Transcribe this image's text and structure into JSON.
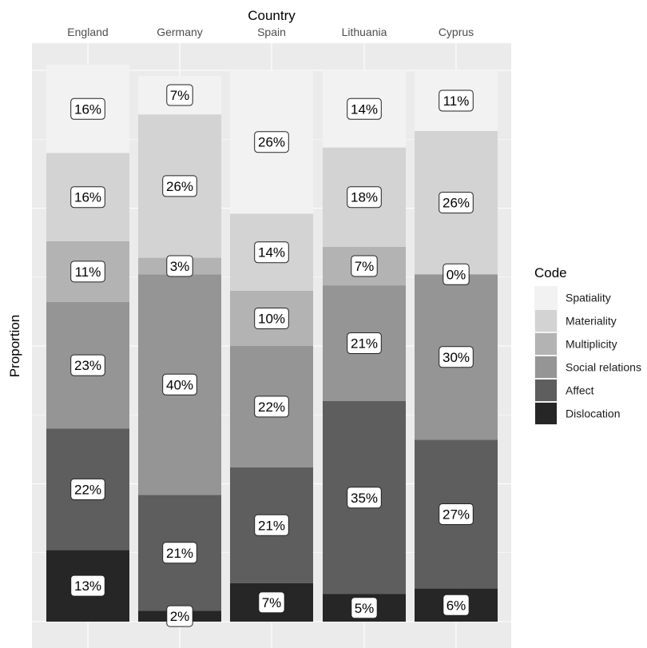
{
  "chart_data": {
    "type": "bar",
    "stacked": true,
    "orientation": "vertical",
    "facet_title": "Country",
    "ylabel": "Proportion",
    "xlabel": "",
    "ylim": [
      0,
      1
    ],
    "y_ticks_labeled": false,
    "grid": true,
    "categories": [
      "England",
      "Germany",
      "Spain",
      "Lithuania",
      "Cyprus"
    ],
    "stack_order_bottom_to_top": [
      "Dislocation",
      "Affect",
      "Social relations",
      "Multiplicity",
      "Materiality",
      "Spatiality"
    ],
    "legend": {
      "title": "Code",
      "position": "right",
      "entries": [
        "Spatiality",
        "Materiality",
        "Multiplicity",
        "Social relations",
        "Affect",
        "Dislocation"
      ]
    },
    "series": [
      {
        "name": "Spatiality",
        "color": "#f2f2f2",
        "values": [
          0.16,
          0.07,
          0.26,
          0.14,
          0.11
        ],
        "labels": [
          "16%",
          "7%",
          "26%",
          "14%",
          "11%"
        ]
      },
      {
        "name": "Materiality",
        "color": "#d3d3d3",
        "values": [
          0.16,
          0.26,
          0.14,
          0.18,
          0.26
        ],
        "labels": [
          "16%",
          "26%",
          "14%",
          "18%",
          "26%"
        ]
      },
      {
        "name": "Multiplicity",
        "color": "#b3b3b3",
        "values": [
          0.11,
          0.03,
          0.1,
          0.07,
          0.0
        ],
        "labels": [
          "11%",
          "3%",
          "10%",
          "7%",
          "0%"
        ]
      },
      {
        "name": "Social relations",
        "color": "#959595",
        "values": [
          0.23,
          0.4,
          0.22,
          0.21,
          0.3
        ],
        "labels": [
          "23%",
          "40%",
          "22%",
          "21%",
          "30%"
        ]
      },
      {
        "name": "Affect",
        "color": "#5e5e5e",
        "values": [
          0.22,
          0.21,
          0.21,
          0.35,
          0.27
        ],
        "labels": [
          "22%",
          "21%",
          "21%",
          "35%",
          "27%"
        ]
      },
      {
        "name": "Dislocation",
        "color": "#262626",
        "values": [
          0.13,
          0.02,
          0.07,
          0.05,
          0.06
        ],
        "labels": [
          "13%",
          "2%",
          "7%",
          "5%",
          "6%"
        ]
      }
    ]
  }
}
